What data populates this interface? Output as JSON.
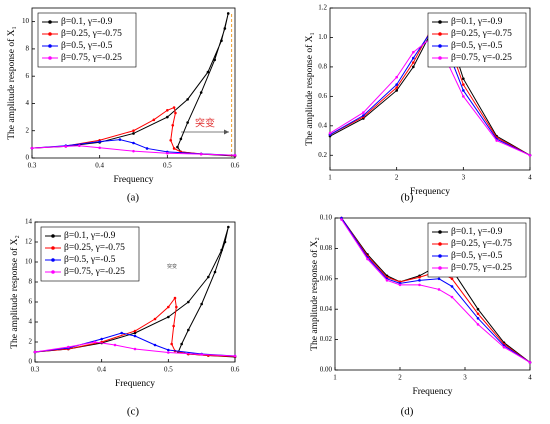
{
  "chart_data": [
    {
      "type": "line",
      "caption": "(a)",
      "xlabel": "Frequency",
      "ylabel": "The amplitude response of X₁",
      "xlim": [
        0.3,
        0.6
      ],
      "xticks": [
        0.3,
        0.4,
        0.5,
        0.6
      ],
      "ylim": [
        0,
        11
      ],
      "yticks": [
        0,
        2,
        4,
        6,
        8,
        10
      ],
      "legend": "upper left",
      "annotation": "突变",
      "series": [
        {
          "name": "β=0.1, γ=-0.9",
          "color": "#000000",
          "x": [
            0.3,
            0.35,
            0.4,
            0.45,
            0.5,
            0.53,
            0.56,
            0.58,
            0.59,
            0.585,
            0.57,
            0.55,
            0.53,
            0.52,
            0.515,
            0.52,
            0.55,
            0.6
          ],
          "values": [
            0.72,
            0.85,
            1.15,
            1.8,
            3.0,
            4.3,
            6.3,
            8.6,
            10.6,
            9.5,
            7.2,
            4.8,
            2.6,
            1.4,
            0.8,
            0.45,
            0.28,
            0.15
          ]
        },
        {
          "name": "β=0.25, γ=-0.75",
          "color": "#ff0000",
          "x": [
            0.3,
            0.35,
            0.4,
            0.45,
            0.48,
            0.5,
            0.51,
            0.512,
            0.508,
            0.505,
            0.51,
            0.52,
            0.55,
            0.6
          ],
          "values": [
            0.72,
            0.88,
            1.3,
            2.0,
            2.8,
            3.5,
            3.7,
            3.3,
            2.4,
            1.3,
            0.7,
            0.45,
            0.3,
            0.18
          ]
        },
        {
          "name": "β=0.5, γ=-0.5",
          "color": "#0000ff",
          "x": [
            0.3,
            0.35,
            0.4,
            0.43,
            0.45,
            0.47,
            0.5,
            0.55,
            0.6
          ],
          "values": [
            0.72,
            0.9,
            1.2,
            1.35,
            1.1,
            0.7,
            0.45,
            0.3,
            0.2
          ]
        },
        {
          "name": "β=0.75, γ=-0.25",
          "color": "#ff00ff",
          "x": [
            0.3,
            0.35,
            0.37,
            0.4,
            0.45,
            0.5,
            0.55,
            0.6
          ],
          "values": [
            0.72,
            0.85,
            0.9,
            0.75,
            0.5,
            0.35,
            0.28,
            0.2
          ]
        }
      ]
    },
    {
      "type": "line",
      "caption": "(b)",
      "xlabel": "Frequency",
      "ylabel": "The amplitude response of X₁",
      "xlim": [
        1,
        4
      ],
      "xticks": [
        1,
        2,
        3,
        4
      ],
      "ylim": [
        0.1,
        1.2
      ],
      "yticks": [
        0.2,
        0.4,
        0.6,
        0.8,
        {
          "value": 1,
          "label": "1.0"
        },
        1.2
      ],
      "legend": "upper right",
      "x": [
        1,
        1.5,
        2,
        2.25,
        2.5,
        2.65,
        2.75,
        3,
        3.5,
        4
      ],
      "series": [
        {
          "name": "β=0.1, γ=-0.9",
          "color": "#000000",
          "values": [
            0.33,
            0.45,
            0.64,
            0.8,
            1.02,
            1.1,
            1.07,
            0.72,
            0.33,
            0.2
          ]
        },
        {
          "name": "β=0.25, γ=-0.75",
          "color": "#ff0000",
          "values": [
            0.34,
            0.46,
            0.66,
            0.83,
            1.04,
            1.06,
            1.0,
            0.68,
            0.32,
            0.2
          ]
        },
        {
          "name": "β=0.5, γ=-0.5",
          "color": "#0000ff",
          "values": [
            0.34,
            0.47,
            0.68,
            0.86,
            1.03,
            1.0,
            0.93,
            0.64,
            0.31,
            0.2
          ]
        },
        {
          "name": "β=0.75, γ=-0.25",
          "color": "#ff00ff",
          "values": [
            0.35,
            0.49,
            0.73,
            0.9,
            0.99,
            0.9,
            0.84,
            0.6,
            0.3,
            0.2
          ]
        }
      ]
    },
    {
      "type": "line",
      "caption": "(c)",
      "xlabel": "Frequency",
      "ylabel": "The amplitude response of X₂",
      "xlim": [
        0.3,
        0.6
      ],
      "xticks": [
        0.3,
        0.4,
        0.5,
        0.6
      ],
      "ylim": [
        0,
        14
      ],
      "yticks": [
        0,
        2,
        4,
        6,
        8,
        10,
        12,
        14
      ],
      "legend": "upper left",
      "annotation": "突变",
      "series": [
        {
          "name": "β=0.1, γ=-0.9",
          "color": "#000000",
          "x": [
            0.3,
            0.35,
            0.4,
            0.45,
            0.5,
            0.53,
            0.56,
            0.58,
            0.59,
            0.585,
            0.57,
            0.55,
            0.53,
            0.52,
            0.515,
            0.53,
            0.56,
            0.6
          ],
          "values": [
            1,
            1.3,
            1.9,
            2.9,
            4.5,
            6,
            8.5,
            11.2,
            13.5,
            12,
            9,
            5.8,
            3.2,
            1.8,
            1.0,
            0.8,
            0.65,
            0.5
          ]
        },
        {
          "name": "β=0.25, γ=-0.75",
          "color": "#ff0000",
          "x": [
            0.3,
            0.35,
            0.4,
            0.45,
            0.48,
            0.5,
            0.51,
            0.512,
            0.508,
            0.505,
            0.51,
            0.53,
            0.56,
            0.6
          ],
          "values": [
            1,
            1.3,
            2,
            3.1,
            4.3,
            5.5,
            6.4,
            5.5,
            3.6,
            1.8,
            1.1,
            0.8,
            0.65,
            0.55
          ]
        },
        {
          "name": "β=0.5, γ=-0.5",
          "color": "#0000ff",
          "x": [
            0.3,
            0.35,
            0.4,
            0.43,
            0.45,
            0.48,
            0.5,
            0.55,
            0.6
          ],
          "values": [
            1,
            1.4,
            2.3,
            2.9,
            2.6,
            1.7,
            1.2,
            0.8,
            0.6
          ]
        },
        {
          "name": "β=0.75, γ=-0.25",
          "color": "#ff00ff",
          "x": [
            0.3,
            0.35,
            0.39,
            0.42,
            0.45,
            0.5,
            0.55,
            0.6
          ],
          "values": [
            1,
            1.5,
            2.0,
            1.7,
            1.3,
            0.95,
            0.75,
            0.6
          ]
        }
      ]
    },
    {
      "type": "line",
      "caption": "(d)",
      "xlabel": "Frequency",
      "ylabel": "The amplitude response of X₂",
      "xlim": [
        1,
        4
      ],
      "xticks": [
        1,
        2,
        3,
        4
      ],
      "ylim": [
        0,
        0.1
      ],
      "yticks": [
        {
          "value": 0,
          "label": "0.00"
        },
        {
          "value": 0.02,
          "label": "0.02"
        },
        {
          "value": 0.04,
          "label": "0.04"
        },
        {
          "value": 0.06,
          "label": "0.06"
        },
        {
          "value": 0.08,
          "label": "0.08"
        },
        {
          "value": 0.1,
          "label": "0.10"
        }
      ],
      "legend": "upper right",
      "x": [
        1.1,
        1.5,
        1.8,
        2.0,
        2.3,
        2.6,
        2.8,
        3.2,
        3.6,
        4.0
      ],
      "series": [
        {
          "name": "β=0.1, γ=-0.9",
          "color": "#000000",
          "values": [
            0.1,
            0.076,
            0.062,
            0.058,
            0.062,
            0.069,
            0.066,
            0.04,
            0.018,
            0.005
          ]
        },
        {
          "name": "β=0.25, γ=-0.75",
          "color": "#ff0000",
          "values": [
            0.1,
            0.075,
            0.061,
            0.058,
            0.061,
            0.065,
            0.06,
            0.037,
            0.017,
            0.005
          ]
        },
        {
          "name": "β=0.5, γ=-0.5",
          "color": "#0000ff",
          "values": [
            0.1,
            0.074,
            0.06,
            0.057,
            0.059,
            0.06,
            0.055,
            0.034,
            0.016,
            0.005
          ]
        },
        {
          "name": "β=0.75, γ=-0.25",
          "color": "#ff00ff",
          "values": [
            0.099,
            0.073,
            0.059,
            0.056,
            0.056,
            0.053,
            0.048,
            0.03,
            0.015,
            0.005
          ]
        }
      ]
    }
  ]
}
